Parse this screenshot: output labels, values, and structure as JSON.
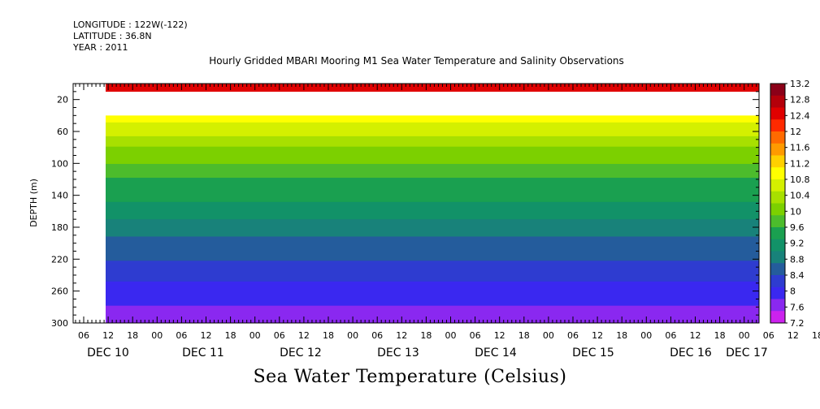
{
  "header": {
    "longitude": "LONGITUDE : 122W(-122)",
    "latitude": "LATITUDE : 36.8N",
    "year": "YEAR : 2011"
  },
  "chart_data": {
    "type": "heatmap",
    "title": "Hourly Gridded MBARI Mooring M1 Sea Water Temperature and Salinity Observations",
    "xlabel": "",
    "ylabel": "DEPTH (m)",
    "colorbar_label": "Sea Water Temperature (Celsius)",
    "y_range": [
      300,
      0
    ],
    "y_ticks": [
      20,
      60,
      100,
      140,
      180,
      220,
      260,
      300
    ],
    "x_hour_ticks": [
      "06",
      "12",
      "18",
      "00",
      "06",
      "12",
      "18",
      "00",
      "06",
      "12",
      "18",
      "00",
      "06",
      "12",
      "18",
      "00",
      "06",
      "12",
      "18",
      "00",
      "06",
      "12",
      "18",
      "00",
      "06",
      "12",
      "18",
      "00",
      "06",
      "12",
      "18",
      "00"
    ],
    "x_day_labels": [
      "DEC 10",
      "DEC 11",
      "DEC 12",
      "DEC 13",
      "DEC 14",
      "DEC 15",
      "DEC 16",
      "DEC 17"
    ],
    "colorbar_ticks": [
      13.2,
      12.8,
      12.4,
      12,
      11.6,
      11.2,
      10.8,
      10.4,
      10,
      9.6,
      9.2,
      8.8,
      8.4,
      8,
      7.6,
      7.2
    ],
    "colorbar_colors": [
      "#8b0018",
      "#b4000a",
      "#e00000",
      "#ff2a00",
      "#ff6a00",
      "#ff9a00",
      "#ffd000",
      "#ffff00",
      "#d4f000",
      "#a8e000",
      "#7cd000",
      "#4cbc2c",
      "#1aa050",
      "#129268",
      "#18827a",
      "#245c9c",
      "#2e3cd0",
      "#3a28f0",
      "#8a28f0",
      "#cc22ee"
    ],
    "surface_depth_value": 12.4,
    "profile": [
      {
        "depth": 40,
        "value": 11.0
      },
      {
        "depth": 60,
        "value": 10.6
      },
      {
        "depth": 80,
        "value": 10.2
      },
      {
        "depth": 100,
        "value": 9.9
      },
      {
        "depth": 120,
        "value": 9.6
      },
      {
        "depth": 140,
        "value": 9.4
      },
      {
        "depth": 160,
        "value": 9.1
      },
      {
        "depth": 180,
        "value": 8.9
      },
      {
        "depth": 200,
        "value": 8.6
      },
      {
        "depth": 220,
        "value": 8.4
      },
      {
        "depth": 240,
        "value": 8.2
      },
      {
        "depth": 260,
        "value": 8.0
      },
      {
        "depth": 280,
        "value": 7.8
      },
      {
        "depth": 300,
        "value": 7.5
      }
    ]
  }
}
